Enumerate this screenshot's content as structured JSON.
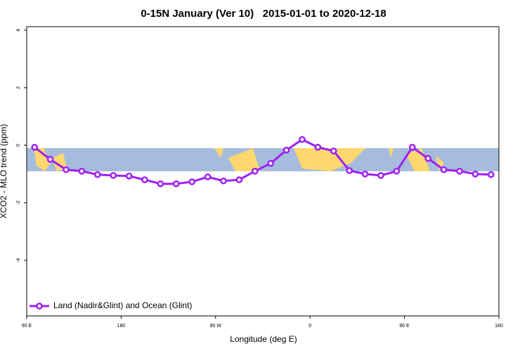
{
  "chart_data": {
    "type": "line",
    "title": "0-15N January (Ver 10)   2015-01-01 to 2020-12-18",
    "x_label": "Longitude (deg E)",
    "y_label": "XCO2 - MLO trend (ppm)",
    "xlim": [
      90,
      540
    ],
    "ylim": [
      -5.93,
      4.12
    ],
    "xticks": [
      {
        "value": 90,
        "label": "90 E"
      },
      {
        "value": 180,
        "label": "180"
      },
      {
        "value": 270,
        "label": "90 W"
      },
      {
        "value": 360,
        "label": "0"
      },
      {
        "value": 450,
        "label": "90 E"
      },
      {
        "value": 540,
        "label": "180"
      }
    ],
    "yticks": [
      4,
      2,
      0,
      -2,
      -4
    ],
    "legend": "bottom-left",
    "x": [
      97.5,
      112.5,
      127.5,
      142.5,
      157.5,
      172.5,
      187.5,
      202.5,
      217.5,
      232.5,
      247.5,
      262.5,
      277.5,
      292.5,
      307.5,
      322.5,
      337.5,
      352.5,
      367.5,
      382.5,
      397.5,
      412.5,
      427.5,
      442.5,
      457.5,
      472.5,
      487.5,
      502.5,
      517.5,
      532.5
    ],
    "series": [
      {
        "name": "Land (Nadir&Glint) and Ocean (Glint)",
        "color": "#a020f0",
        "values": [
          -0.07,
          -0.49,
          -0.85,
          -0.9,
          -1.02,
          -1.05,
          -1.07,
          -1.2,
          -1.34,
          -1.34,
          -1.27,
          -1.1,
          -1.24,
          -1.2,
          -0.9,
          -0.63,
          -0.17,
          0.2,
          -0.07,
          -0.2,
          -0.88,
          -1.0,
          -1.05,
          -0.9,
          -0.07,
          -0.46,
          -0.85,
          -0.9,
          -1.0,
          -1.02
        ]
      }
    ]
  }
}
